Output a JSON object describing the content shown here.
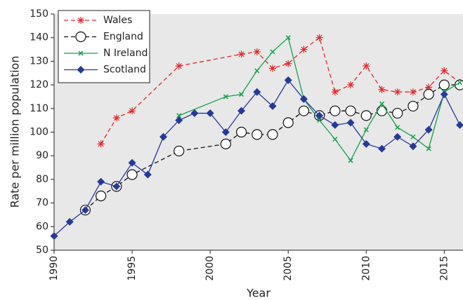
{
  "chart_data": {
    "type": "line",
    "x_label": "Year",
    "y_label": "Rate per million population",
    "xlim": [
      1990,
      2016.2
    ],
    "ylim": [
      50,
      150
    ],
    "xticks": [
      1990,
      1995,
      2000,
      2005,
      2010,
      2015
    ],
    "yticks": [
      50,
      60,
      70,
      80,
      90,
      100,
      110,
      120,
      130,
      140,
      150
    ],
    "legend": "upper left",
    "background": "#e8e8e8",
    "series": [
      {
        "name": "Wales",
        "color": "#e0282e",
        "marker": "asterisk",
        "dash": true,
        "x": [
          1993,
          1994,
          1995,
          1998,
          2002,
          2003,
          2004,
          2005,
          2006,
          2007,
          2008,
          2009,
          2010,
          2011,
          2012,
          2013,
          2014,
          2015,
          2016
        ],
        "values": [
          95,
          106,
          109,
          128,
          133,
          134,
          127,
          129,
          135,
          140,
          117,
          120,
          128,
          118,
          117,
          117,
          119,
          126,
          121
        ]
      },
      {
        "name": "England",
        "color": "#111111",
        "marker": "circle",
        "dash": true,
        "x": [
          1992,
          1993,
          1994,
          1995,
          1998,
          2001,
          2002,
          2003,
          2004,
          2005,
          2006,
          2007,
          2008,
          2009,
          2010,
          2011,
          2012,
          2013,
          2014,
          2015,
          2016
        ],
        "values": [
          67,
          73,
          77,
          82,
          92,
          95,
          100,
          99,
          99,
          104,
          109,
          107,
          109,
          109,
          107,
          109,
          108,
          111,
          116,
          120,
          120
        ]
      },
      {
        "name": "N Ireland",
        "color": "#12a04a",
        "marker": "cross",
        "dash": false,
        "x": [
          1998,
          2001,
          2002,
          2003,
          2004,
          2005,
          2006,
          2007,
          2008,
          2009,
          2010,
          2011,
          2012,
          2013,
          2014,
          2015,
          2016
        ],
        "values": [
          107,
          115,
          116,
          126,
          134,
          140,
          114,
          105,
          97,
          88,
          101,
          112,
          102,
          98,
          93,
          117,
          121
        ]
      },
      {
        "name": "Scotland",
        "color": "#25399a",
        "marker": "diamond",
        "dash": false,
        "x": [
          1990,
          1991,
          1992,
          1993,
          1994,
          1995,
          1996,
          1997,
          1998,
          1999,
          2000,
          2001,
          2002,
          2003,
          2004,
          2005,
          2006,
          2007,
          2008,
          2009,
          2010,
          2011,
          2012,
          2013,
          2014,
          2015,
          2016
        ],
        "values": [
          56,
          62,
          67,
          79,
          77,
          87,
          82,
          98,
          105,
          108,
          108,
          100,
          109,
          117,
          111,
          122,
          114,
          107,
          103,
          104,
          95,
          93,
          98,
          94,
          101,
          116,
          103
        ]
      }
    ]
  }
}
